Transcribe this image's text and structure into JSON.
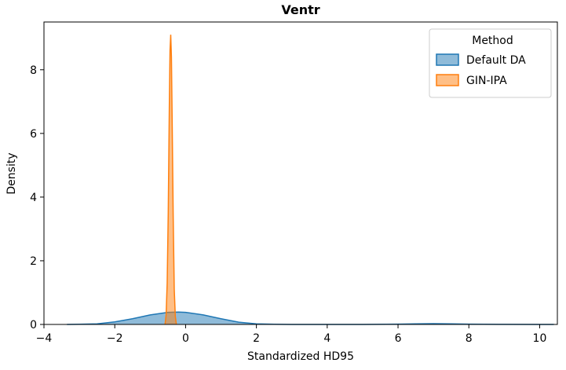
{
  "chart_data": {
    "type": "area",
    "title": "Ventr",
    "xlabel": "Standardized HD95",
    "ylabel": "Density",
    "xlim": [
      -4,
      10.5
    ],
    "ylim": [
      0,
      9.5
    ],
    "xticks": [
      -4,
      -2,
      0,
      2,
      4,
      6,
      8,
      10
    ],
    "yticks": [
      0,
      2,
      4,
      6,
      8
    ],
    "grid": false,
    "legend": {
      "title": "Method",
      "placement": "top-right"
    },
    "series": [
      {
        "name": "Default DA",
        "color": "#1f77b4",
        "x": [
          -3.35,
          -3.0,
          -2.5,
          -2.0,
          -1.5,
          -1.0,
          -0.5,
          -0.2,
          0.0,
          0.5,
          1.0,
          1.5,
          2.0,
          2.5,
          3.0,
          4.0,
          5.0,
          6.0,
          6.5,
          7.0,
          7.5,
          8.0,
          9.0,
          10.0,
          10.4
        ],
        "y": [
          0.0,
          0.005,
          0.02,
          0.08,
          0.18,
          0.3,
          0.38,
          0.39,
          0.38,
          0.3,
          0.18,
          0.07,
          0.02,
          0.005,
          0.0,
          0.0,
          0.0,
          0.01,
          0.02,
          0.025,
          0.02,
          0.01,
          0.002,
          0.0,
          0.0
        ]
      },
      {
        "name": "GIN-IPA",
        "color": "#ff7f0e",
        "x": [
          -0.58,
          -0.55,
          -0.52,
          -0.49,
          -0.46,
          -0.44,
          -0.42,
          -0.4,
          -0.38,
          -0.35,
          -0.32,
          -0.29,
          -0.26
        ],
        "y": [
          0.0,
          0.3,
          1.3,
          3.5,
          6.8,
          8.6,
          9.1,
          8.4,
          6.5,
          3.4,
          1.1,
          0.25,
          0.0
        ]
      }
    ]
  }
}
